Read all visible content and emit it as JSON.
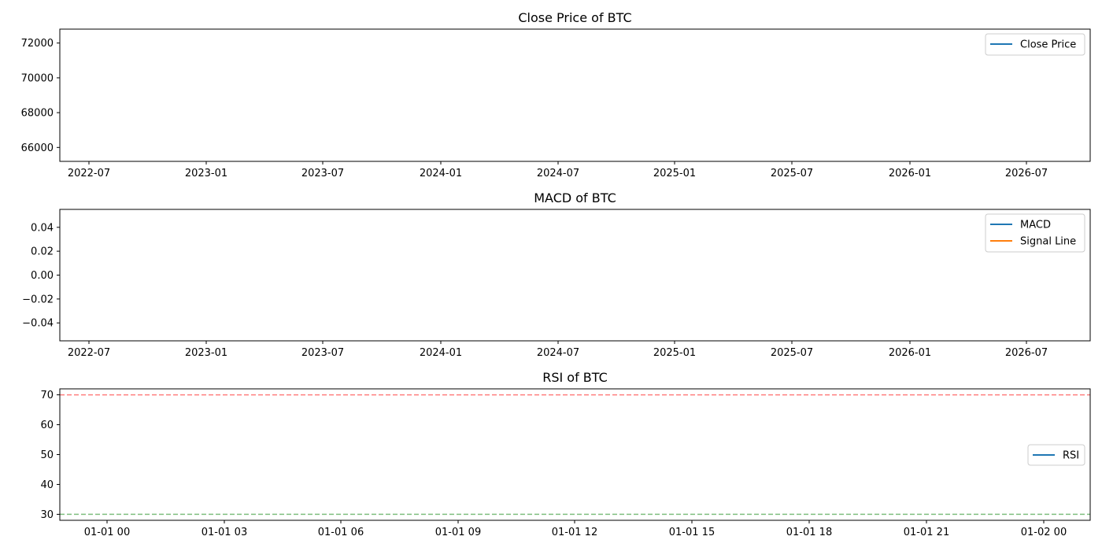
{
  "chart_data": [
    {
      "type": "line",
      "title": "Close Price of BTC",
      "xlabel": "",
      "ylabel": "",
      "x_ticks": [
        "2022-07",
        "2023-01",
        "2023-07",
        "2024-01",
        "2024-07",
        "2025-01",
        "2025-07",
        "2026-01",
        "2026-07"
      ],
      "y_ticks": [
        66000,
        68000,
        70000,
        72000
      ],
      "ylim": [
        65200,
        72800
      ],
      "grid": false,
      "legend_position": "upper right",
      "series": [
        {
          "name": "Close Price",
          "color": "#1f77b4",
          "x": [],
          "y": []
        }
      ],
      "reference_lines": []
    },
    {
      "type": "line",
      "title": "MACD of BTC",
      "xlabel": "",
      "ylabel": "",
      "x_ticks": [
        "2022-07",
        "2023-01",
        "2023-07",
        "2024-01",
        "2024-07",
        "2025-01",
        "2025-07",
        "2026-01",
        "2026-07"
      ],
      "y_ticks": [
        "−0.04",
        "−0.02",
        "0.00",
        "0.02",
        "0.04"
      ],
      "ylim": [
        -0.055,
        0.055
      ],
      "grid": false,
      "legend_position": "upper right",
      "series": [
        {
          "name": "MACD",
          "color": "#1f77b4",
          "x": [],
          "y": []
        },
        {
          "name": "Signal Line",
          "color": "#ff7f0e",
          "x": [],
          "y": []
        }
      ],
      "reference_lines": []
    },
    {
      "type": "line",
      "title": "RSI of BTC",
      "xlabel": "",
      "ylabel": "",
      "x_ticks": [
        "01-01 00",
        "01-01 03",
        "01-01 06",
        "01-01 09",
        "01-01 12",
        "01-01 15",
        "01-01 18",
        "01-01 21",
        "01-02 00"
      ],
      "y_ticks": [
        30,
        40,
        50,
        60,
        70
      ],
      "ylim": [
        28,
        72
      ],
      "grid": false,
      "legend_position": "center right",
      "series": [
        {
          "name": "RSI",
          "color": "#1f77b4",
          "x": [],
          "y": []
        }
      ],
      "reference_lines": [
        {
          "y": 70,
          "color": "#ff7f7f",
          "style": "dashed"
        },
        {
          "y": 30,
          "color": "#7fbf7f",
          "style": "dashed"
        }
      ]
    }
  ]
}
